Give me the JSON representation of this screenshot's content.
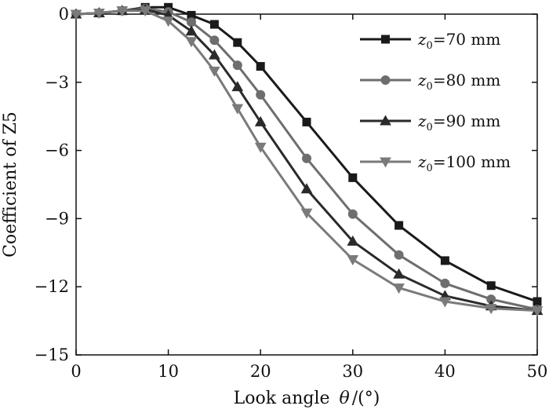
{
  "chart_data": {
    "type": "line",
    "xlabel": "Look angle",
    "xlabel_symbol": "θ",
    "xlabel_unit": "/(°)",
    "ylabel": "Coefficient of Z5",
    "xlim": [
      0,
      50
    ],
    "ylim": [
      -15,
      0
    ],
    "xticks": [
      0,
      10,
      20,
      30,
      40,
      50
    ],
    "yticks": [
      0,
      -3,
      -6,
      -9,
      -12,
      -15
    ],
    "ytick_labels": [
      "0",
      "−3",
      "−6",
      "−9",
      "−12",
      "−15"
    ],
    "grid": false,
    "legend_position": "top-right",
    "x": [
      0,
      2.5,
      5,
      7.5,
      10,
      12.5,
      15,
      17.5,
      20,
      25,
      30,
      35,
      40,
      45,
      50
    ],
    "series": [
      {
        "name": "z0=70 mm",
        "legend_var": "z",
        "legend_sub": "0",
        "legend_rest": "=70 mm",
        "marker": "square",
        "color": "#1a1a1a",
        "values": [
          0,
          0.05,
          0.15,
          0.3,
          0.3,
          -0.05,
          -0.45,
          -1.25,
          -2.3,
          -4.75,
          -7.2,
          -9.3,
          -10.85,
          -11.95,
          -12.65
        ]
      },
      {
        "name": "z0=80 mm",
        "legend_var": "z",
        "legend_sub": "0",
        "legend_rest": "=80 mm",
        "marker": "circle",
        "color": "#6e6e6e",
        "values": [
          0,
          0.05,
          0.15,
          0.25,
          0.1,
          -0.35,
          -1.15,
          -2.25,
          -3.55,
          -6.35,
          -8.8,
          -10.6,
          -11.85,
          -12.55,
          -13.0
        ]
      },
      {
        "name": "z0=90 mm",
        "legend_var": "z",
        "legend_sub": "0",
        "legend_rest": "=90 mm",
        "marker": "triangle-up",
        "color": "#2a2a2a",
        "values": [
          0,
          0.05,
          0.15,
          0.2,
          -0.05,
          -0.75,
          -1.8,
          -3.2,
          -4.75,
          -7.7,
          -10.0,
          -11.45,
          -12.4,
          -12.85,
          -13.05
        ]
      },
      {
        "name": "z0=100 mm",
        "legend_var": "z",
        "legend_sub": "0",
        "legend_rest": "=100 mm",
        "marker": "triangle-down",
        "color": "#7a7a7a",
        "values": [
          0,
          0.05,
          0.15,
          0.15,
          -0.3,
          -1.2,
          -2.5,
          -4.15,
          -5.85,
          -8.75,
          -10.8,
          -12.05,
          -12.65,
          -12.95,
          -13.05
        ]
      }
    ]
  }
}
